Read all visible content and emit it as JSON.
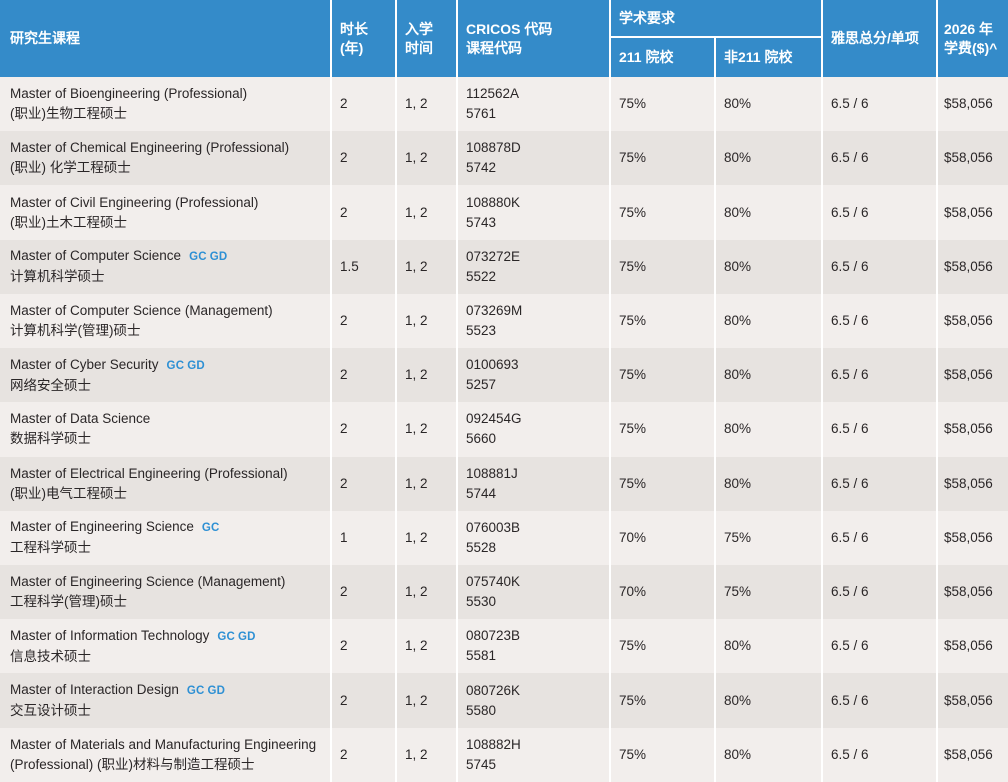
{
  "colors": {
    "header_bg": "#348bc9",
    "badge_blue": "#2e90d4",
    "row_light": "#f2eeec",
    "row_dark": "#e7e3e0",
    "header_text": "#ffffff",
    "body_text": "#2a2627"
  },
  "header": {
    "program": "研究生课程",
    "duration": [
      "时长",
      "(年)"
    ],
    "intake": [
      "入学",
      "时间"
    ],
    "cricos": [
      "CRICOS 代码",
      "课程代码"
    ],
    "academic_group": "学术要求",
    "academic_211": "211 院校",
    "academic_non211": "非211 院校",
    "ielts": "雅思总分/单项",
    "fee": [
      "2026 年",
      "学费($)^"
    ]
  },
  "rows": [
    {
      "en": "Master of Bioengineering (Professional)",
      "badges": [],
      "zh": "(职业)生物工程硕士",
      "layout": "stacked",
      "duration": "2",
      "intake": "1, 2",
      "cricos": "112562A",
      "course_code": "5761",
      "req_211": "75%",
      "req_non211": "80%",
      "ielts": "6.5 / 6",
      "fee": "$58,056"
    },
    {
      "en": "Master of Chemical Engineering (Professional)",
      "badges": [],
      "zh": "(职业) 化学工程硕士",
      "layout": "stacked",
      "duration": "2",
      "intake": "1, 2",
      "cricos": "108878D",
      "course_code": "5742",
      "req_211": "75%",
      "req_non211": "80%",
      "ielts": "6.5 / 6",
      "fee": "$58,056"
    },
    {
      "en": "Master of Civil Engineering (Professional)",
      "badges": [],
      "zh": "(职业)土木工程硕士",
      "layout": "stacked",
      "duration": "2",
      "intake": "1, 2",
      "cricos": "108880K",
      "course_code": "5743",
      "req_211": "75%",
      "req_non211": "80%",
      "ielts": "6.5 / 6",
      "fee": "$58,056"
    },
    {
      "en": "Master of Computer Science",
      "badges": [
        "GC",
        "GD"
      ],
      "zh": "计算机科学硕士",
      "layout": "stacked",
      "duration": "1.5",
      "intake": "1, 2",
      "cricos": "073272E",
      "course_code": "5522",
      "req_211": "75%",
      "req_non211": "80%",
      "ielts": "6.5 / 6",
      "fee": "$58,056"
    },
    {
      "en": "Master of Computer Science (Management)",
      "badges": [],
      "zh": "计算机科学(管理)硕士",
      "layout": "stacked",
      "duration": "2",
      "intake": "1, 2",
      "cricos": "073269M",
      "course_code": "5523",
      "req_211": "75%",
      "req_non211": "80%",
      "ielts": "6.5 / 6",
      "fee": "$58,056"
    },
    {
      "en": "Master of Cyber Security",
      "badges": [
        "GC",
        "GD"
      ],
      "zh": "网络安全硕士",
      "layout": "stacked",
      "duration": "2",
      "intake": "1, 2",
      "cricos": "0100693",
      "course_code": "5257",
      "req_211": "75%",
      "req_non211": "80%",
      "ielts": "6.5 / 6",
      "fee": "$58,056"
    },
    {
      "en": "Master of Data Science",
      "badges": [],
      "zh": "数据科学硕士",
      "layout": "stacked",
      "duration": "2",
      "intake": "1, 2",
      "cricos": "092454G",
      "course_code": "5660",
      "req_211": "75%",
      "req_non211": "80%",
      "ielts": "6.5 / 6",
      "fee": "$58,056"
    },
    {
      "en": "Master of Electrical Engineering (Professional)",
      "badges": [],
      "zh": "(职业)电气工程硕士",
      "layout": "stacked",
      "duration": "2",
      "intake": "1, 2",
      "cricos": "108881J",
      "course_code": "5744",
      "req_211": "75%",
      "req_non211": "80%",
      "ielts": "6.5 / 6",
      "fee": "$58,056"
    },
    {
      "en": "Master of Engineering Science",
      "badges": [
        "GC"
      ],
      "zh": "工程科学硕士",
      "layout": "stacked",
      "duration": "1",
      "intake": "1, 2",
      "cricos": "076003B",
      "course_code": "5528",
      "req_211": "70%",
      "req_non211": "75%",
      "ielts": "6.5 / 6",
      "fee": "$58,056"
    },
    {
      "en": "Master of Engineering Science (Management)",
      "badges": [],
      "zh": "工程科学(管理)硕士",
      "layout": "stacked",
      "duration": "2",
      "intake": "1, 2",
      "cricos": "075740K",
      "course_code": "5530",
      "req_211": "70%",
      "req_non211": "75%",
      "ielts": "6.5 / 6",
      "fee": "$58,056"
    },
    {
      "en": "Master of Information Technology",
      "badges": [
        "GC",
        "GD"
      ],
      "zh": "信息技术硕士",
      "layout": "stacked",
      "duration": "2",
      "intake": "1, 2",
      "cricos": "080723B",
      "course_code": "5581",
      "req_211": "75%",
      "req_non211": "80%",
      "ielts": "6.5 / 6",
      "fee": "$58,056"
    },
    {
      "en": "Master of Interaction Design",
      "badges": [
        "GC",
        "GD"
      ],
      "zh": "交互设计硕士",
      "layout": "stacked",
      "duration": "2",
      "intake": "1, 2",
      "cricos": "080726K",
      "course_code": "5580",
      "req_211": "75%",
      "req_non211": "80%",
      "ielts": "6.5 / 6",
      "fee": "$58,056"
    },
    {
      "en": "Master of Materials and Manufacturing Engineering (Professional)",
      "badges": [],
      "zh": "(职业)材料与制造工程硕士",
      "layout": "inline",
      "duration": "2",
      "intake": "1, 2",
      "cricos": "108882H",
      "course_code": "5745",
      "req_211": "75%",
      "req_non211": "80%",
      "ielts": "6.5 / 6",
      "fee": "$58,056"
    }
  ]
}
